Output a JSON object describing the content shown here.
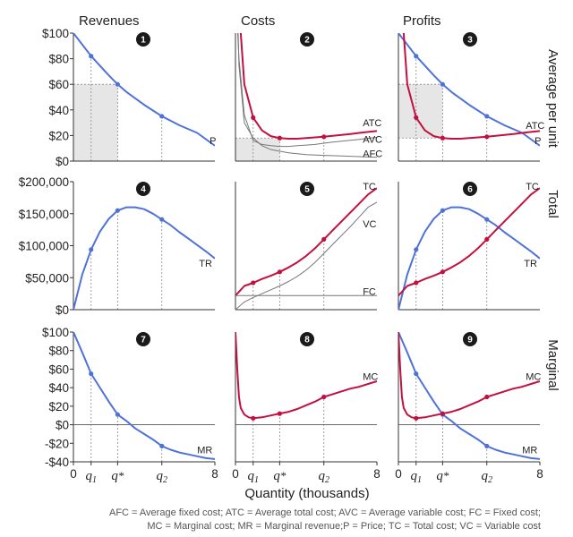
{
  "chart_data": {
    "type": "line",
    "title": "",
    "columns": [
      "Revenues",
      "Costs",
      "Profits"
    ],
    "rows": [
      "Average per unit",
      "Total",
      "Marginal"
    ],
    "xlabel": "Quantity (thousands)",
    "x_ticks": [
      "0",
      "8"
    ],
    "x_special_ticks": [
      {
        "x": 1,
        "label": "q1"
      },
      {
        "x": 2.5,
        "label": "q*"
      },
      {
        "x": 5,
        "label": "q2"
      }
    ],
    "xlim": [
      0,
      8
    ],
    "footnote_lines": [
      "AFC = Average fixed cost; ATC = Average total cost; AVC = Average variable cost; FC = Fixed cost;",
      "MC = Marginal cost; MR = Marginal revenue;P = Price; TC = Total cost; VC = Variable cost"
    ],
    "panel_numbers": [
      "1",
      "2",
      "3",
      "4",
      "5",
      "6",
      "7",
      "8",
      "9"
    ],
    "row_axes": [
      {
        "ylim": [
          0,
          100
        ],
        "ticks": [
          "$0",
          "$20",
          "$40",
          "$60",
          "$80",
          "$100"
        ],
        "tick_values": [
          0,
          20,
          40,
          60,
          80,
          100
        ]
      },
      {
        "ylim": [
          0,
          200000
        ],
        "ticks": [
          "$0",
          "$50,000",
          "$100,000",
          "$150,000",
          "$200,000"
        ],
        "tick_values": [
          0,
          50000,
          100000,
          150000,
          200000
        ]
      },
      {
        "ylim": [
          -40,
          100
        ],
        "ticks": [
          "-$40",
          "-$20",
          "$0",
          "$20",
          "$40",
          "$60",
          "$80",
          "$100"
        ],
        "tick_values": [
          -40,
          -20,
          0,
          20,
          40,
          60,
          80,
          100
        ]
      }
    ],
    "colors": {
      "demand": "#4f72d9",
      "cost": "#c2103f",
      "gray": "#777777",
      "shade": "#e6e6e6"
    },
    "series": [
      {
        "name": "P",
        "panel": 1,
        "color": "demand",
        "x": [
          0,
          1,
          2,
          2.5,
          3,
          4,
          5,
          6,
          7,
          8
        ],
        "y": [
          100,
          82,
          67,
          60,
          54,
          44,
          35,
          28,
          22,
          12
        ]
      },
      {
        "name": "ATC",
        "panel": 2,
        "color": "cost",
        "x": [
          0.1,
          0.2,
          0.5,
          1,
          1.5,
          2,
          2.5,
          3,
          3.5,
          4,
          4.5,
          5,
          5.5,
          6,
          6.5,
          7,
          7.5,
          8
        ],
        "y": [
          150,
          120,
          60,
          34,
          24,
          19.5,
          18,
          17.5,
          17.5,
          18,
          18.5,
          19,
          19.8,
          20.5,
          21.2,
          22,
          22.8,
          23.5
        ]
      },
      {
        "name": "AVC",
        "panel": 2,
        "color": "gray",
        "x": [
          0.1,
          0.2,
          0.5,
          1,
          1.5,
          2,
          2.5,
          3,
          3.5,
          4,
          4.5,
          5,
          5.5,
          6,
          6.5,
          7,
          7.5,
          8
        ],
        "y": [
          107,
          80,
          36,
          16,
          13,
          12,
          11.5,
          11.5,
          12,
          12.5,
          13,
          14,
          14.8,
          15.5,
          16.3,
          17,
          17.8,
          18.5
        ]
      },
      {
        "name": "AFC",
        "panel": 2,
        "color": "gray",
        "x": [
          0.15,
          0.2,
          0.5,
          1,
          1.5,
          2,
          3,
          4,
          5,
          6,
          7,
          8
        ],
        "y": [
          100,
          75,
          30,
          18,
          12,
          9,
          6.5,
          5,
          4.5,
          4,
          3.5,
          3
        ]
      },
      {
        "name": "P",
        "panel": 3,
        "color": "demand",
        "x": [
          0,
          1,
          2,
          2.5,
          3,
          4,
          5,
          6,
          7,
          8
        ],
        "y": [
          100,
          82,
          67,
          60,
          54,
          44,
          35,
          28,
          22,
          12
        ]
      },
      {
        "name": "ATC",
        "panel": 3,
        "color": "cost",
        "x": [
          0.1,
          0.2,
          0.5,
          1,
          1.5,
          2,
          2.5,
          3,
          3.5,
          4,
          4.5,
          5,
          5.5,
          6,
          6.5,
          7,
          7.5,
          8
        ],
        "y": [
          150,
          120,
          60,
          34,
          24,
          19.5,
          18,
          17.5,
          17.5,
          18,
          18.5,
          19,
          19.8,
          20.5,
          21.2,
          22,
          22.8,
          23.5
        ]
      },
      {
        "name": "TR",
        "panel": 4,
        "color": "demand",
        "x": [
          0,
          0.5,
          1,
          1.5,
          2,
          2.5,
          3,
          3.5,
          4,
          4.5,
          5,
          5.5,
          6,
          6.5,
          7,
          7.5,
          8
        ],
        "y": [
          0,
          55000,
          94000,
          122000,
          142000,
          155000,
          160000,
          160000,
          157000,
          150000,
          141000,
          132000,
          121000,
          111000,
          101000,
          91000,
          80000
        ]
      },
      {
        "name": "TC",
        "panel": 5,
        "color": "cost",
        "x": [
          0,
          0.5,
          1,
          1.5,
          2,
          2.5,
          3,
          3.5,
          4,
          4.5,
          5,
          5.5,
          6,
          6.5,
          7,
          7.5,
          8
        ],
        "y": [
          22000,
          37000,
          42000,
          48000,
          53000,
          59000,
          66000,
          74000,
          84000,
          96000,
          110000,
          124000,
          138000,
          152000,
          166000,
          180000,
          190000
        ]
      },
      {
        "name": "VC",
        "panel": 5,
        "color": "gray",
        "x": [
          0,
          0.5,
          1,
          1.5,
          2,
          2.5,
          3,
          3.5,
          4,
          4.5,
          5,
          5.5,
          6,
          6.5,
          7,
          7.5,
          8
        ],
        "y": [
          0,
          12000,
          19000,
          25000,
          31000,
          37000,
          44000,
          52000,
          62000,
          74000,
          88000,
          102000,
          116000,
          130000,
          145000,
          160000,
          168000
        ]
      },
      {
        "name": "FC",
        "panel": 5,
        "color": "gray",
        "x": [
          0,
          8
        ],
        "y": [
          22000,
          22000
        ]
      },
      {
        "name": "TR",
        "panel": 6,
        "color": "demand",
        "x": [
          0,
          0.5,
          1,
          1.5,
          2,
          2.5,
          3,
          3.5,
          4,
          4.5,
          5,
          5.5,
          6,
          6.5,
          7,
          7.5,
          8
        ],
        "y": [
          0,
          55000,
          94000,
          122000,
          142000,
          155000,
          160000,
          160000,
          157000,
          150000,
          141000,
          132000,
          121000,
          111000,
          101000,
          91000,
          80000
        ]
      },
      {
        "name": "TC",
        "panel": 6,
        "color": "cost",
        "x": [
          0,
          0.5,
          1,
          1.5,
          2,
          2.5,
          3,
          3.5,
          4,
          4.5,
          5,
          5.5,
          6,
          6.5,
          7,
          7.5,
          8
        ],
        "y": [
          22000,
          37000,
          42000,
          48000,
          53000,
          59000,
          66000,
          74000,
          84000,
          96000,
          110000,
          124000,
          138000,
          152000,
          166000,
          180000,
          190000
        ]
      },
      {
        "name": "MR",
        "panel": 7,
        "color": "demand",
        "x": [
          0,
          0.5,
          1,
          1.5,
          2,
          2.5,
          3,
          3.5,
          4,
          4.5,
          5,
          5.5,
          6,
          6.5,
          7,
          7.5,
          8
        ],
        "y": [
          100,
          78,
          55,
          40,
          25,
          11,
          4,
          -4,
          -10,
          -16,
          -23,
          -27,
          -30,
          -32,
          -34,
          -36,
          -37
        ]
      },
      {
        "name": "MC",
        "panel": 8,
        "color": "cost",
        "x": [
          0,
          0.1,
          0.2,
          0.3,
          0.5,
          0.75,
          1,
          1.5,
          2,
          2.5,
          3,
          3.5,
          4,
          4.5,
          5,
          5.5,
          6,
          6.5,
          7,
          7.5,
          8
        ],
        "y": [
          100,
          60,
          30,
          18,
          11,
          8,
          7,
          8,
          10,
          12,
          14,
          17,
          21,
          25,
          30,
          33,
          36,
          39,
          41,
          44,
          47
        ]
      },
      {
        "name": "MR",
        "panel": 9,
        "color": "demand",
        "x": [
          0,
          0.5,
          1,
          1.5,
          2,
          2.5,
          3,
          3.5,
          4,
          4.5,
          5,
          5.5,
          6,
          6.5,
          7,
          7.5,
          8
        ],
        "y": [
          100,
          78,
          55,
          40,
          25,
          11,
          4,
          -4,
          -10,
          -16,
          -23,
          -27,
          -30,
          -32,
          -34,
          -36,
          -37
        ]
      },
      {
        "name": "MC",
        "panel": 9,
        "color": "cost",
        "x": [
          0,
          0.1,
          0.2,
          0.3,
          0.5,
          0.75,
          1,
          1.5,
          2,
          2.5,
          3,
          3.5,
          4,
          4.5,
          5,
          5.5,
          6,
          6.5,
          7,
          7.5,
          8
        ],
        "y": [
          100,
          60,
          30,
          18,
          11,
          8,
          7,
          8,
          10,
          12,
          14,
          17,
          21,
          25,
          30,
          33,
          36,
          39,
          41,
          44,
          47
        ]
      }
    ],
    "points": [
      {
        "panel": 1,
        "color": "demand",
        "x": [
          1,
          2.5,
          5
        ],
        "y": [
          82,
          60,
          35
        ]
      },
      {
        "panel": 2,
        "color": "cost",
        "x": [
          1,
          2.5,
          5
        ],
        "y": [
          34,
          18,
          19
        ]
      },
      {
        "panel": 3,
        "color": "demand",
        "x": [
          1,
          2.5,
          5
        ],
        "y": [
          82,
          60,
          35
        ]
      },
      {
        "panel": 3,
        "color": "cost",
        "x": [
          1,
          2.5,
          5
        ],
        "y": [
          34,
          18,
          19
        ]
      },
      {
        "panel": 4,
        "color": "demand",
        "x": [
          1,
          2.5,
          5
        ],
        "y": [
          94000,
          155000,
          141000
        ]
      },
      {
        "panel": 5,
        "color": "cost",
        "x": [
          1,
          2.5,
          5
        ],
        "y": [
          42000,
          59000,
          110000
        ]
      },
      {
        "panel": 6,
        "color": "demand",
        "x": [
          1,
          2.5,
          5
        ],
        "y": [
          94000,
          155000,
          141000
        ]
      },
      {
        "panel": 6,
        "color": "cost",
        "x": [
          1,
          2.5,
          5
        ],
        "y": [
          42000,
          59000,
          110000
        ]
      },
      {
        "panel": 7,
        "color": "demand",
        "x": [
          1,
          2.5,
          5
        ],
        "y": [
          55,
          11,
          -23
        ]
      },
      {
        "panel": 8,
        "color": "cost",
        "x": [
          1,
          2.5,
          5
        ],
        "y": [
          7,
          12,
          30
        ]
      },
      {
        "panel": 9,
        "color": "demand",
        "x": [
          1,
          2.5,
          5
        ],
        "y": [
          55,
          11,
          -23
        ]
      },
      {
        "panel": 9,
        "color": "cost",
        "x": [
          1,
          2.5,
          5
        ],
        "y": [
          7,
          12,
          30
        ]
      }
    ],
    "shaded_regions": [
      {
        "panel": 1,
        "x": [
          0,
          2.5
        ],
        "y": [
          0,
          60
        ]
      },
      {
        "panel": 2,
        "x": [
          0,
          2.5
        ],
        "y": [
          0,
          18
        ]
      },
      {
        "panel": 3,
        "x": [
          0,
          2.5
        ],
        "y": [
          18,
          60
        ]
      }
    ],
    "guide_lines": [
      {
        "panel": 1,
        "x": [
          1,
          2.5,
          5
        ],
        "y": [
          82,
          60,
          35
        ],
        "hline_at": 60
      },
      {
        "panel": 2,
        "x": [
          1,
          2.5,
          5
        ],
        "y": [
          34,
          18,
          19
        ],
        "hline_at": 18
      },
      {
        "panel": 3,
        "x": [
          1,
          2.5,
          5
        ],
        "y": [
          82,
          60,
          35
        ],
        "hline_at": 60,
        "hline2_at": 18
      },
      {
        "panel": 4,
        "x": [
          1,
          2.5,
          5
        ],
        "y": [
          94000,
          155000,
          141000
        ]
      },
      {
        "panel": 5,
        "x": [
          1,
          2.5,
          5
        ],
        "y": [
          42000,
          59000,
          110000
        ]
      },
      {
        "panel": 6,
        "x": [
          1,
          2.5,
          5
        ],
        "y": [
          94000,
          155000,
          141000
        ]
      },
      {
        "panel": 7,
        "x": [
          1,
          2.5,
          5
        ],
        "y": [
          55,
          11,
          -23
        ]
      },
      {
        "panel": 8,
        "x": [
          1,
          2.5,
          5
        ],
        "y": [
          7,
          12,
          30
        ]
      },
      {
        "panel": 9,
        "x": [
          1,
          2.5,
          5
        ],
        "y": [
          55,
          11,
          -23
        ]
      }
    ],
    "zero_lines": [
      7,
      8,
      9
    ],
    "curve_labels": [
      {
        "panel": 1,
        "text": "P",
        "x": 7.7,
        "y": 16
      },
      {
        "panel": 2,
        "text": "ATC",
        "x": 7.2,
        "y": 30
      },
      {
        "panel": 2,
        "text": "AVC",
        "x": 7.2,
        "y": 17
      },
      {
        "panel": 2,
        "text": "AFC",
        "x": 7.2,
        "y": 6
      },
      {
        "panel": 3,
        "text": "ATC",
        "x": 7.2,
        "y": 28
      },
      {
        "panel": 3,
        "text": "P",
        "x": 7.7,
        "y": 16
      },
      {
        "panel": 4,
        "text": "TR",
        "x": 7.1,
        "y": 73000
      },
      {
        "panel": 5,
        "text": "TC",
        "x": 7.2,
        "y": 193000
      },
      {
        "panel": 5,
        "text": "VC",
        "x": 7.2,
        "y": 134000
      },
      {
        "panel": 5,
        "text": "FC",
        "x": 7.2,
        "y": 29000
      },
      {
        "panel": 6,
        "text": "TC",
        "x": 7.2,
        "y": 193000
      },
      {
        "panel": 6,
        "text": "TR",
        "x": 7.1,
        "y": 73000
      },
      {
        "panel": 7,
        "text": "MR",
        "x": 7.0,
        "y": -27
      },
      {
        "panel": 8,
        "text": "MC",
        "x": 7.2,
        "y": 52
      },
      {
        "panel": 9,
        "text": "MC",
        "x": 7.2,
        "y": 52
      },
      {
        "panel": 9,
        "text": "MR",
        "x": 7.0,
        "y": -27
      }
    ]
  }
}
